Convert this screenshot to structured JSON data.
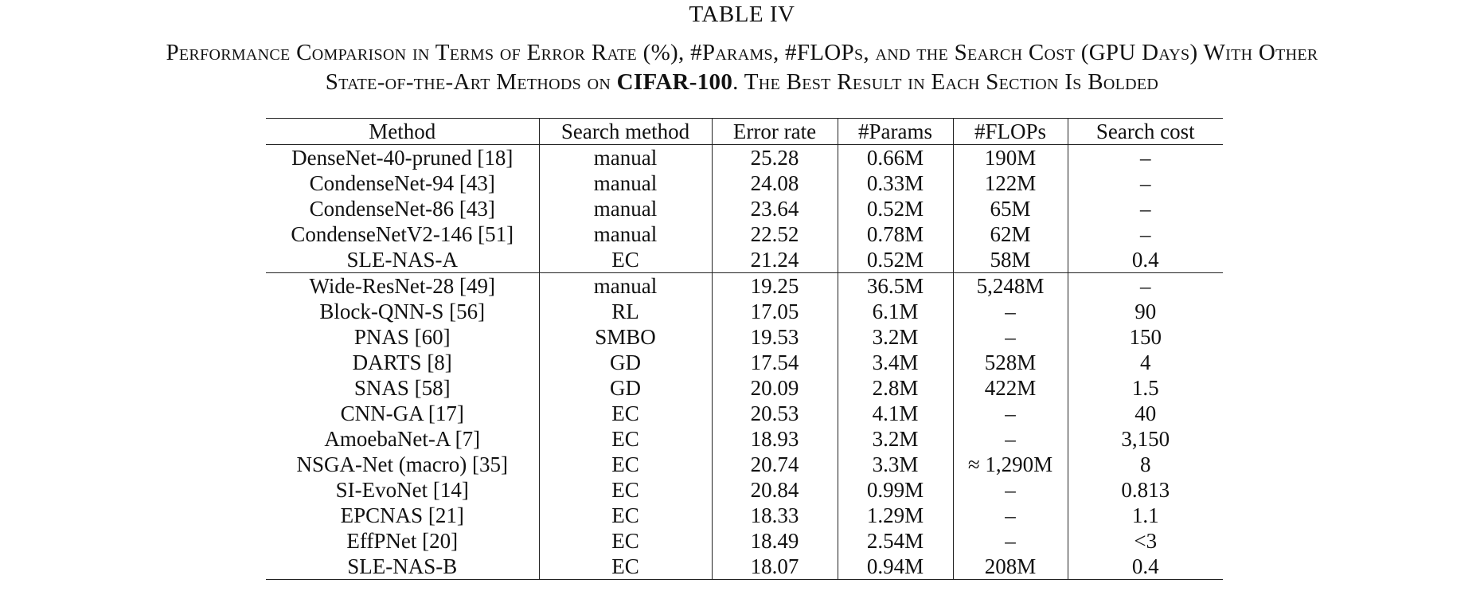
{
  "table_label": "TABLE IV",
  "caption": {
    "line1": "Performance Comparison in Terms of Error Rate (%), #Params, #FLOPs, and the Search Cost (GPU Days) With Other",
    "line2_prefix": "State-of-the-Art Methods on ",
    "line2_dataset": "CIFAR-100",
    "line2_suffix": ". The Best Result in Each Section Is Bolded"
  },
  "columns": [
    "Method",
    "Search method",
    "Error rate",
    "#Params",
    "#FLOPs",
    "Search cost"
  ],
  "sections": [
    {
      "rows": [
        {
          "cells": [
            "DenseNet-40-pruned [18]",
            "manual",
            "25.28",
            "0.66M",
            "190M",
            "–"
          ],
          "bold": []
        },
        {
          "cells": [
            "CondenseNet-94 [43]",
            "manual",
            "24.08",
            "0.33M",
            "122M",
            "–"
          ],
          "bold": [
            3
          ]
        },
        {
          "cells": [
            "CondenseNet-86 [43]",
            "manual",
            "23.64",
            "0.52M",
            "65M",
            "–"
          ],
          "bold": []
        },
        {
          "cells": [
            "CondenseNetV2-146 [51]",
            "manual",
            "22.52",
            "0.78M",
            "62M",
            "–"
          ],
          "bold": []
        },
        {
          "cells": [
            "SLE-NAS-A",
            "EC",
            "21.24",
            "0.52M",
            "58M",
            "0.4"
          ],
          "bold": [
            0,
            2,
            4,
            5
          ]
        }
      ]
    },
    {
      "rows": [
        {
          "cells": [
            "Wide-ResNet-28 [49]",
            "manual",
            "19.25",
            "36.5M",
            "5,248M",
            "–"
          ],
          "bold": []
        },
        {
          "cells": [
            "Block-QNN-S [56]",
            "RL",
            "17.05",
            "6.1M",
            "–",
            "90"
          ],
          "bold": [
            2
          ]
        },
        {
          "cells": [
            "PNAS [60]",
            "SMBO",
            "19.53",
            "3.2M",
            "–",
            "150"
          ],
          "bold": []
        },
        {
          "cells": [
            "DARTS [8]",
            "GD",
            "17.54",
            "3.4M",
            "528M",
            "4"
          ],
          "bold": []
        },
        {
          "cells": [
            "SNAS [58]",
            "GD",
            "20.09",
            "2.8M",
            "422M",
            "1.5"
          ],
          "bold": []
        },
        {
          "cells": [
            "CNN-GA [17]",
            "EC",
            "20.53",
            "4.1M",
            "–",
            "40"
          ],
          "bold": []
        },
        {
          "cells": [
            "AmoebaNet-A [7]",
            "EC",
            "18.93",
            "3.2M",
            "–",
            "3,150"
          ],
          "bold": []
        },
        {
          "cells": [
            "NSGA-Net (macro) [35]",
            "EC",
            "20.74",
            "3.3M",
            "≈ 1,290M",
            "8"
          ],
          "bold": []
        },
        {
          "cells": [
            "SI-EvoNet [14]",
            "EC",
            "20.84",
            "0.99M",
            "–",
            "0.813"
          ],
          "bold": []
        },
        {
          "cells": [
            "EPCNAS [21]",
            "EC",
            "18.33",
            "1.29M",
            "–",
            "1.1"
          ],
          "bold": []
        },
        {
          "cells": [
            "EffPNet [20]",
            "EC",
            "18.49",
            "2.54M",
            "–",
            "<3"
          ],
          "bold": []
        },
        {
          "cells": [
            "SLE-NAS-B",
            "EC",
            "18.07",
            "0.94M",
            "208M",
            "0.4"
          ],
          "bold": [
            0,
            3,
            4,
            5
          ]
        }
      ]
    }
  ]
}
